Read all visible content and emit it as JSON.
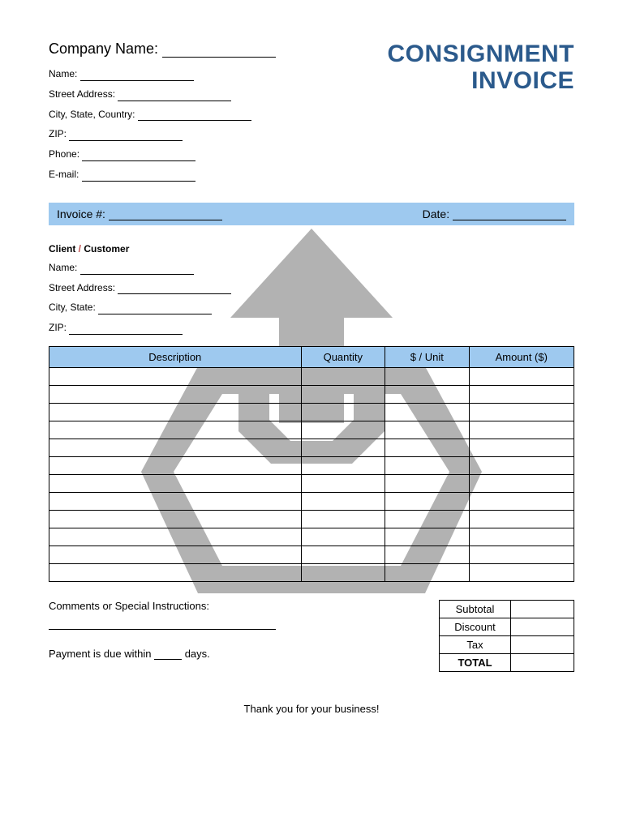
{
  "title": {
    "line1": "CONSIGNMENT",
    "line2": "INVOICE",
    "color": "#2b5a8c"
  },
  "company": {
    "name_label": "Company Name:",
    "fields": {
      "name": "Name:",
      "street": "Street Address:",
      "citystatecountry": "City, State, Country:",
      "zip": "ZIP:",
      "phone": "Phone:",
      "email": "E-mail:"
    }
  },
  "invoice_bar": {
    "invoice_label": "Invoice #:",
    "date_label": "Date:",
    "bg_color": "#9ec9ef"
  },
  "client": {
    "header_client": "Client",
    "header_slash": " / ",
    "header_customer": "Customer",
    "fields": {
      "name": "Name:",
      "street": "Street Address:",
      "citystate": "City, State:",
      "zip": "ZIP:"
    }
  },
  "table": {
    "headers": {
      "desc": "Description",
      "qty": "Quantity",
      "unit": "$ / Unit",
      "amount": "Amount ($)"
    },
    "header_bg": "#9ec9ef",
    "row_count": 12
  },
  "comments": {
    "label": "Comments or Special Instructions:",
    "payment_pre": "Payment is due within ",
    "payment_post": " days."
  },
  "totals": {
    "subtotal": "Subtotal",
    "discount": "Discount",
    "tax": "Tax",
    "total": "TOTAL"
  },
  "footer": {
    "thanks": "Thank you for your business!"
  },
  "watermark": {
    "color": "#b2b2b2"
  }
}
